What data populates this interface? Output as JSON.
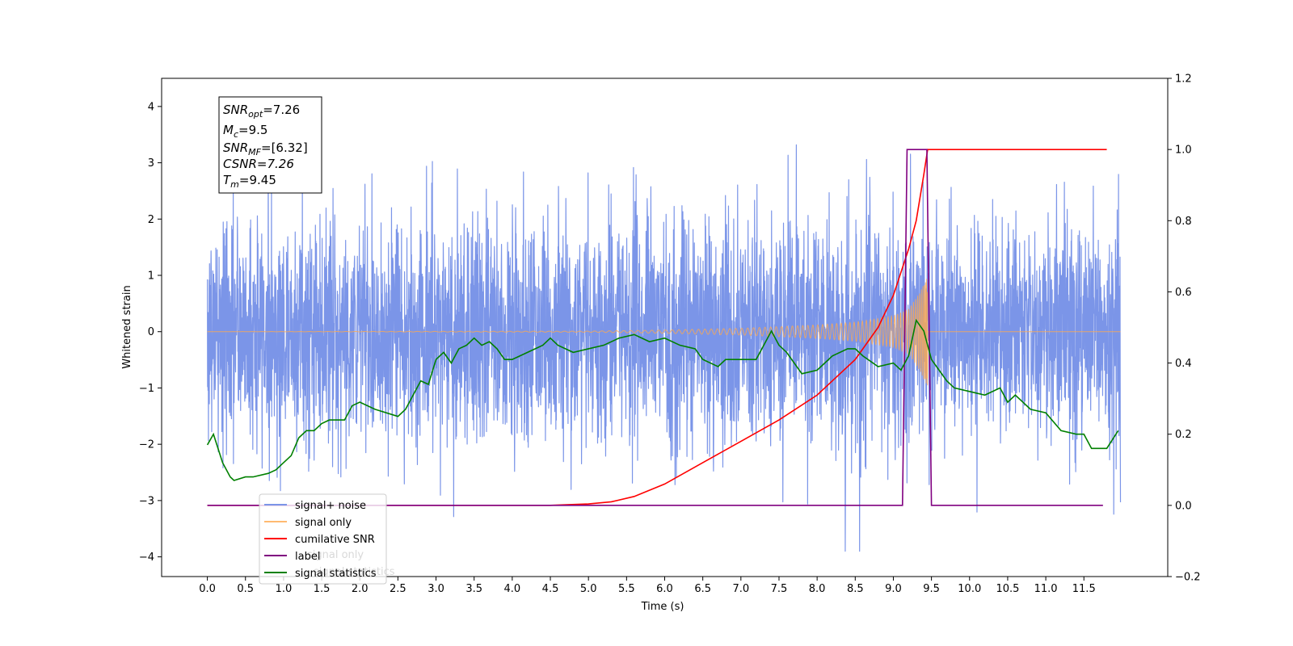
{
  "chart_data": {
    "type": "line",
    "xlabel": "Time (s)",
    "ylabel": "Whitened strain",
    "xlim": [
      -0.6,
      12.6
    ],
    "ylim": [
      -4.35,
      4.5
    ],
    "y2lim": [
      -0.2,
      1.2
    ],
    "x_ticks": [
      "0.0",
      "0.5",
      "1.0",
      "1.5",
      "2.0",
      "2.5",
      "3.0",
      "3.5",
      "4.0",
      "4.5",
      "5.0",
      "5.5",
      "6.0",
      "6.5",
      "7.0",
      "7.5",
      "8.0",
      "8.5",
      "9.0",
      "9.5",
      "10.0",
      "10.5",
      "11.0",
      "11.5"
    ],
    "y_ticks": [
      "4",
      "3",
      "2",
      "1",
      "0",
      "−1",
      "−2",
      "−3",
      "−4"
    ],
    "y2_ticks": [
      "1.2",
      "1.0",
      "0.8",
      "0.6",
      "0.4",
      "0.2",
      "0.0",
      "−0.2"
    ],
    "info_box": {
      "snr_opt": "=7.26",
      "mc": "=9.5",
      "snr_mf": "=[6.32]",
      "csnr": "CSNR=7.26",
      "tm": "=9.45"
    },
    "legend": {
      "position": "lower-left",
      "entries": [
        "signal+ noise",
        "signal only",
        "cumilative SNR",
        "label",
        "signal statistics"
      ],
      "hidden_fragments": [
        "signal only",
        "signal statistics"
      ]
    },
    "colors": {
      "signal_noise": "#7b95e8",
      "signal_only": "#ffa94d",
      "cumulative_snr": "#ff0000",
      "label": "#800080",
      "signal_statistics": "#008000"
    },
    "series": [
      {
        "name": "signal+ noise",
        "axis": "left",
        "noise_sigma": 1.0,
        "max": 3.9,
        "min": -3.9
      },
      {
        "name": "signal only",
        "axis": "left",
        "merger_time": 9.45,
        "envelope_x": [
          0.0,
          5.0,
          6.0,
          7.0,
          8.0,
          8.5,
          9.0,
          9.2,
          9.35,
          9.45
        ],
        "envelope_y": [
          0.0,
          0.01,
          0.03,
          0.06,
          0.12,
          0.17,
          0.28,
          0.4,
          0.7,
          1.0
        ]
      },
      {
        "name": "cumilative SNR",
        "axis": "right",
        "x": [
          0.0,
          4.5,
          5.0,
          5.3,
          5.6,
          6.0,
          6.5,
          7.0,
          7.5,
          8.0,
          8.5,
          8.8,
          9.0,
          9.2,
          9.3,
          9.4,
          9.45,
          11.8
        ],
        "values": [
          0.0,
          0.0,
          0.004,
          0.01,
          0.025,
          0.06,
          0.12,
          0.18,
          0.24,
          0.31,
          0.41,
          0.5,
          0.59,
          0.72,
          0.8,
          0.93,
          1.0,
          1.0
        ]
      },
      {
        "name": "label",
        "axis": "right",
        "x": [
          0.0,
          9.12,
          9.18,
          9.4,
          9.44,
          9.5,
          11.75
        ],
        "values": [
          0.0,
          0.0,
          1.0,
          1.0,
          1.0,
          0.0,
          0.0
        ]
      },
      {
        "name": "signal statistics",
        "axis": "right",
        "x": [
          0.0,
          0.08,
          0.2,
          0.3,
          0.35,
          0.5,
          0.6,
          0.8,
          0.9,
          1.0,
          1.1,
          1.2,
          1.3,
          1.4,
          1.5,
          1.6,
          1.7,
          1.8,
          1.9,
          2.0,
          2.2,
          2.5,
          2.6,
          2.8,
          2.9,
          3.0,
          3.1,
          3.2,
          3.3,
          3.4,
          3.5,
          3.6,
          3.7,
          3.8,
          3.9,
          4.0,
          4.2,
          4.4,
          4.5,
          4.6,
          4.8,
          5.0,
          5.2,
          5.4,
          5.6,
          5.8,
          6.0,
          6.2,
          6.4,
          6.5,
          6.6,
          6.7,
          6.8,
          7.0,
          7.2,
          7.4,
          7.5,
          7.6,
          7.8,
          8.0,
          8.2,
          8.4,
          8.5,
          8.6,
          8.8,
          9.0,
          9.1,
          9.2,
          9.3,
          9.4,
          9.5,
          9.6,
          9.7,
          9.8,
          10.0,
          10.2,
          10.4,
          10.5,
          10.6,
          10.8,
          11.0,
          11.2,
          11.4,
          11.5,
          11.6,
          11.8,
          11.95
        ],
        "values": [
          0.17,
          0.2,
          0.12,
          0.08,
          0.07,
          0.08,
          0.08,
          0.09,
          0.1,
          0.12,
          0.14,
          0.19,
          0.21,
          0.21,
          0.23,
          0.24,
          0.24,
          0.24,
          0.28,
          0.29,
          0.27,
          0.25,
          0.27,
          0.35,
          0.34,
          0.41,
          0.43,
          0.4,
          0.44,
          0.45,
          0.47,
          0.45,
          0.46,
          0.44,
          0.41,
          0.41,
          0.43,
          0.45,
          0.47,
          0.45,
          0.43,
          0.44,
          0.45,
          0.47,
          0.48,
          0.46,
          0.47,
          0.45,
          0.44,
          0.41,
          0.4,
          0.39,
          0.41,
          0.41,
          0.41,
          0.49,
          0.45,
          0.43,
          0.37,
          0.38,
          0.42,
          0.44,
          0.44,
          0.42,
          0.39,
          0.4,
          0.38,
          0.42,
          0.52,
          0.49,
          0.41,
          0.38,
          0.35,
          0.33,
          0.32,
          0.31,
          0.33,
          0.29,
          0.31,
          0.27,
          0.26,
          0.21,
          0.2,
          0.2,
          0.16,
          0.16,
          0.21
        ]
      }
    ]
  }
}
